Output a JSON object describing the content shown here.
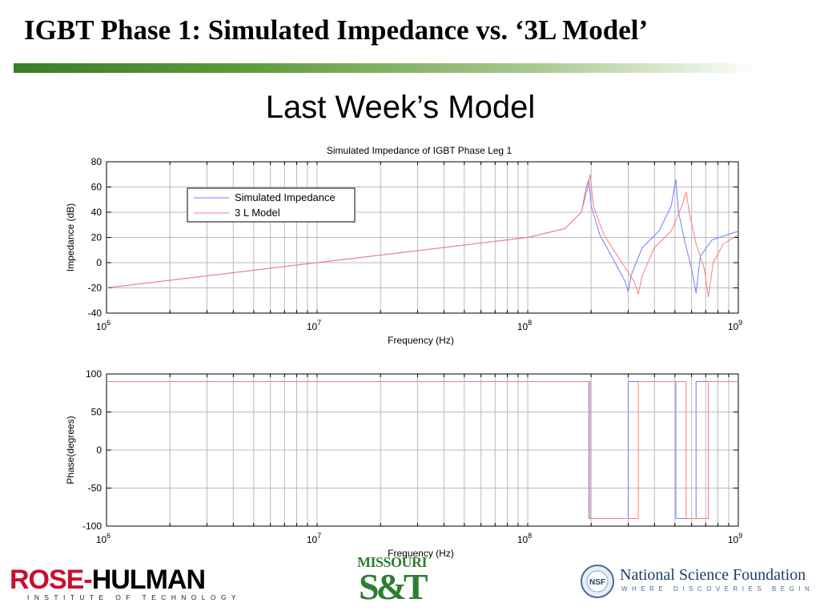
{
  "slide": {
    "title": "IGBT Phase 1:  Simulated Impedance vs. ‘3L Model’",
    "subtitle": "Last Week’s Model"
  },
  "colors": {
    "title_bar": "#3a7d2a",
    "simulated": "#6f7dff",
    "model": "#ff7b7b"
  },
  "logos": {
    "rose_hulman": {
      "name_part1": "ROSE-",
      "name_part2": "HULMAN",
      "tagline": "INSTITUTE OF TECHNOLOGY"
    },
    "missouri_st": {
      "top": "MISSOURI",
      "bottom": "S&T"
    },
    "nsf": {
      "name": "National Science Foundation",
      "tagline": "WHERE DISCOVERIES BEGIN",
      "seal_text": "NSF"
    }
  },
  "chart_data": [
    {
      "type": "line",
      "title": "Simulated Impedance of IGBT Phase Leg 1",
      "xlabel": "Frequency (Hz)",
      "ylabel": "Impedance (dB)",
      "xscale": "log",
      "xlim": [
        1000000,
        1000000000
      ],
      "ylim": [
        -40,
        80
      ],
      "xticks": [
        {
          "value": 1000000,
          "base": "10",
          "exp": "6"
        },
        {
          "value": 10000000,
          "base": "10",
          "exp": "7"
        },
        {
          "value": 100000000,
          "base": "10",
          "exp": "8"
        },
        {
          "value": 1000000000,
          "base": "10",
          "exp": "9"
        }
      ],
      "yticks": [
        "80",
        "60",
        "40",
        "20",
        "0",
        "-20",
        "-40"
      ],
      "grid": true,
      "legend": {
        "placement": "top-left",
        "entries": [
          "Simulated Impedance",
          "3 L Model"
        ]
      },
      "series": [
        {
          "name": "Simulated Impedance",
          "color": "#6f7dff",
          "points": [
            [
              1000000,
              -20
            ],
            [
              10000000,
              0
            ],
            [
              100000000,
              20
            ],
            [
              150000000,
              27
            ],
            [
              180000000,
              40
            ],
            [
              190000000,
              60
            ],
            [
              195000000,
              66
            ],
            [
              200000000,
              45
            ],
            [
              220000000,
              22
            ],
            [
              260000000,
              0
            ],
            [
              290000000,
              -15
            ],
            [
              300000000,
              -23
            ],
            [
              310000000,
              -10
            ],
            [
              350000000,
              12
            ],
            [
              420000000,
              25
            ],
            [
              480000000,
              45
            ],
            [
              505000000,
              66
            ],
            [
              520000000,
              40
            ],
            [
              560000000,
              15
            ],
            [
              600000000,
              -5
            ],
            [
              630000000,
              -24
            ],
            [
              660000000,
              5
            ],
            [
              750000000,
              18
            ],
            [
              1000000000,
              25
            ]
          ]
        },
        {
          "name": "3 L Model",
          "color": "#ff7b7b",
          "points": [
            [
              1000000,
              -20
            ],
            [
              10000000,
              0
            ],
            [
              100000000,
              20
            ],
            [
              150000000,
              27
            ],
            [
              180000000,
              40
            ],
            [
              193000000,
              60
            ],
            [
              198000000,
              70
            ],
            [
              205000000,
              45
            ],
            [
              230000000,
              22
            ],
            [
              280000000,
              0
            ],
            [
              320000000,
              -15
            ],
            [
              335000000,
              -25
            ],
            [
              350000000,
              -10
            ],
            [
              400000000,
              12
            ],
            [
              480000000,
              25
            ],
            [
              540000000,
              45
            ],
            [
              565000000,
              56
            ],
            [
              585000000,
              40
            ],
            [
              630000000,
              15
            ],
            [
              690000000,
              -5
            ],
            [
              720000000,
              -27
            ],
            [
              760000000,
              0
            ],
            [
              850000000,
              15
            ],
            [
              1000000000,
              22
            ]
          ]
        }
      ]
    },
    {
      "type": "line",
      "title": "",
      "xlabel": "Frequency (Hz)",
      "ylabel": "Phase(degrees)",
      "xscale": "log",
      "xlim": [
        1000000,
        1000000000
      ],
      "ylim": [
        -100,
        100
      ],
      "xticks": [
        {
          "value": 1000000,
          "base": "10",
          "exp": "6"
        },
        {
          "value": 10000000,
          "base": "10",
          "exp": "7"
        },
        {
          "value": 100000000,
          "base": "10",
          "exp": "8"
        },
        {
          "value": 1000000000,
          "base": "10",
          "exp": "9"
        }
      ],
      "yticks": [
        "100",
        "50",
        "0",
        "-50",
        "-100"
      ],
      "grid": true,
      "series": [
        {
          "name": "Simulated Impedance",
          "color": "#6f7dff",
          "points": [
            [
              1000000,
              90
            ],
            [
              195000000,
              90
            ],
            [
              195000000,
              -90
            ],
            [
              300000000,
              -90
            ],
            [
              300000000,
              90
            ],
            [
              505000000,
              90
            ],
            [
              505000000,
              -90
            ],
            [
              630000000,
              -90
            ],
            [
              630000000,
              90
            ],
            [
              1000000000,
              90
            ]
          ]
        },
        {
          "name": "3 L Model",
          "color": "#ff7b7b",
          "points": [
            [
              1000000,
              90
            ],
            [
              198000000,
              90
            ],
            [
              198000000,
              -90
            ],
            [
              335000000,
              -90
            ],
            [
              335000000,
              90
            ],
            [
              565000000,
              90
            ],
            [
              565000000,
              -90
            ],
            [
              720000000,
              -90
            ],
            [
              720000000,
              90
            ],
            [
              1000000000,
              90
            ]
          ]
        }
      ]
    }
  ]
}
